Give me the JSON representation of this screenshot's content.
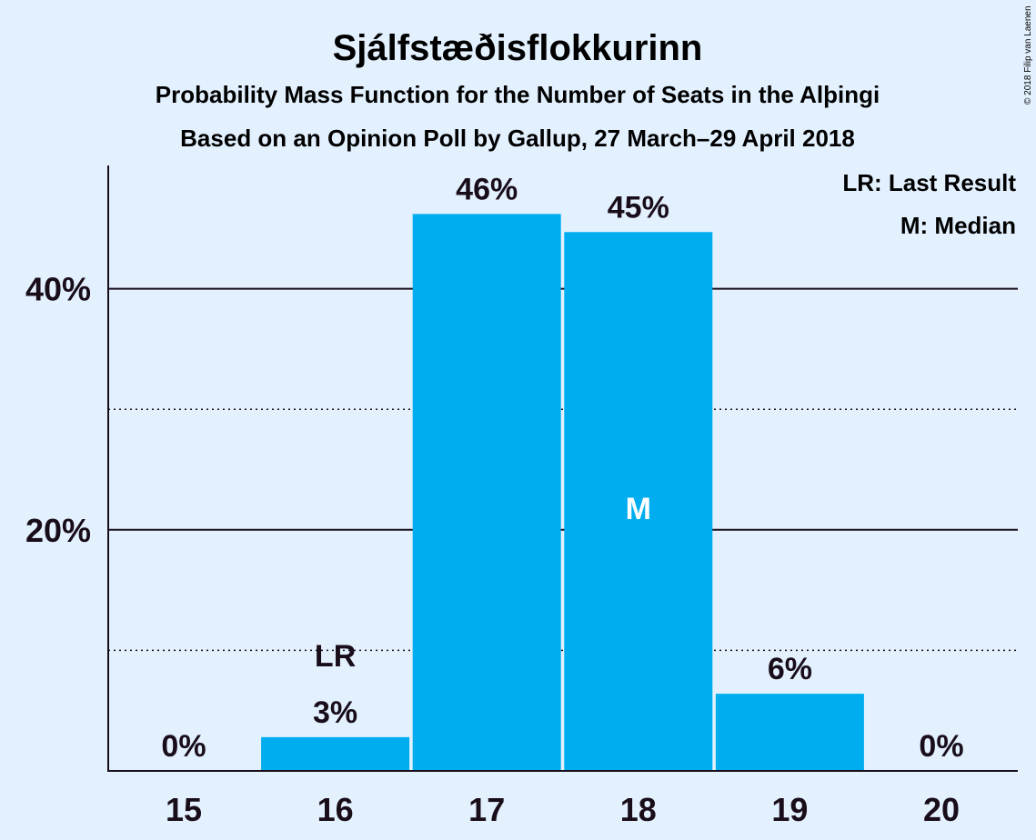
{
  "title": "Sjálfstæðisflokkurinn",
  "subtitle1": "Probability Mass Function for the Number of Seats in the Alþingi",
  "subtitle2": "Based on an Opinion Poll by Gallup, 27 March–29 April 2018",
  "copyright": "© 2018 Filip van Laenen",
  "legend": {
    "lr": "LR: Last Result",
    "median": "M: Median"
  },
  "colors": {
    "background": "#e3f1ff",
    "bar": "#00aeef",
    "text": "#1a0d1a"
  },
  "chart_data": {
    "type": "bar",
    "categories": [
      "15",
      "16",
      "17",
      "18",
      "19",
      "20"
    ],
    "values": [
      0,
      2.8,
      46.2,
      44.7,
      6.4,
      0
    ],
    "labels": [
      "0%",
      "3%",
      "46%",
      "45%",
      "6%",
      "0%"
    ],
    "ylim": [
      0,
      50
    ],
    "yticks": [
      {
        "value": 20,
        "label": "20%",
        "style": "solid"
      },
      {
        "value": 40,
        "label": "40%",
        "style": "solid"
      }
    ],
    "ygrid_minor": [
      10,
      30
    ],
    "last_result": {
      "category": "16",
      "label": "LR"
    },
    "median": {
      "category": "18",
      "label": "M"
    },
    "legend_position": "top-right"
  }
}
